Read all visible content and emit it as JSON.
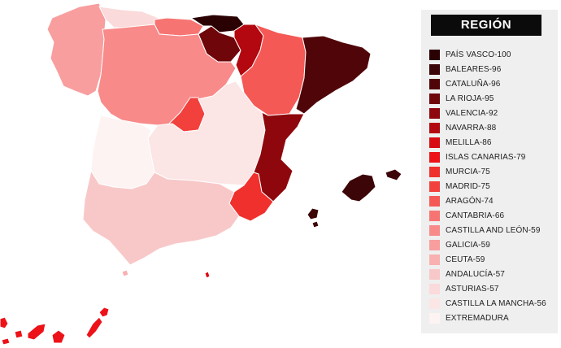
{
  "legend": {
    "title": "REGIÓN",
    "items": [
      {
        "label": "PAÍS VASCO-100",
        "color": "#2a0204"
      },
      {
        "label": "BALEARES-96",
        "color": "#3c0507"
      },
      {
        "label": "CATALUÑA-96",
        "color": "#500508"
      },
      {
        "label": "LA RIOJA-95",
        "color": "#6e060a"
      },
      {
        "label": "VALENCIA-92",
        "color": "#8e070c"
      },
      {
        "label": "NAVARRA-88",
        "color": "#b3080f"
      },
      {
        "label": "MELILLA-86",
        "color": "#d80a12"
      },
      {
        "label": "ISLAS CANARIAS-79",
        "color": "#ec1218"
      },
      {
        "label": "MURCIA-75",
        "color": "#f0302c"
      },
      {
        "label": "MADRID-75",
        "color": "#f2403c"
      },
      {
        "label": "ARAGÓN-74",
        "color": "#f45956"
      },
      {
        "label": "CANTABRIA-66",
        "color": "#f67573"
      },
      {
        "label": "CASTILLA AND LEÓN-59",
        "color": "#f88a8a"
      },
      {
        "label": "GALICIA-59",
        "color": "#f89e9e"
      },
      {
        "label": "CEUTA-59",
        "color": "#f9b0b0"
      },
      {
        "label": "ANDALUCÍA-57",
        "color": "#f8c8c8"
      },
      {
        "label": "ASTURIAS-57",
        "color": "#fadada"
      },
      {
        "label": "CASTILLA LA MANCHA-56",
        "color": "#fbe5e5"
      },
      {
        "label": "EXTREMADURA",
        "color": "#fdf3f3"
      }
    ]
  },
  "regions": {
    "galicia": "#f89e9e",
    "asturias": "#fadada",
    "cantabria": "#f67573",
    "pais_vasco": "#2a0204",
    "navarra": "#b3080f",
    "la_rioja": "#6e060a",
    "aragon": "#f45956",
    "cataluna": "#500508",
    "castilla_leon": "#f88a8a",
    "madrid": "#f2403c",
    "castilla_la_mancha": "#fbe5e5",
    "extremadura": "#fdf3f3",
    "valencia": "#8e070c",
    "murcia": "#f0302c",
    "andalucia": "#f8c8c8",
    "baleares": "#3c0507",
    "canarias": "#ec1218",
    "ceuta": "#f9b0b0",
    "melilla": "#d80a12"
  }
}
